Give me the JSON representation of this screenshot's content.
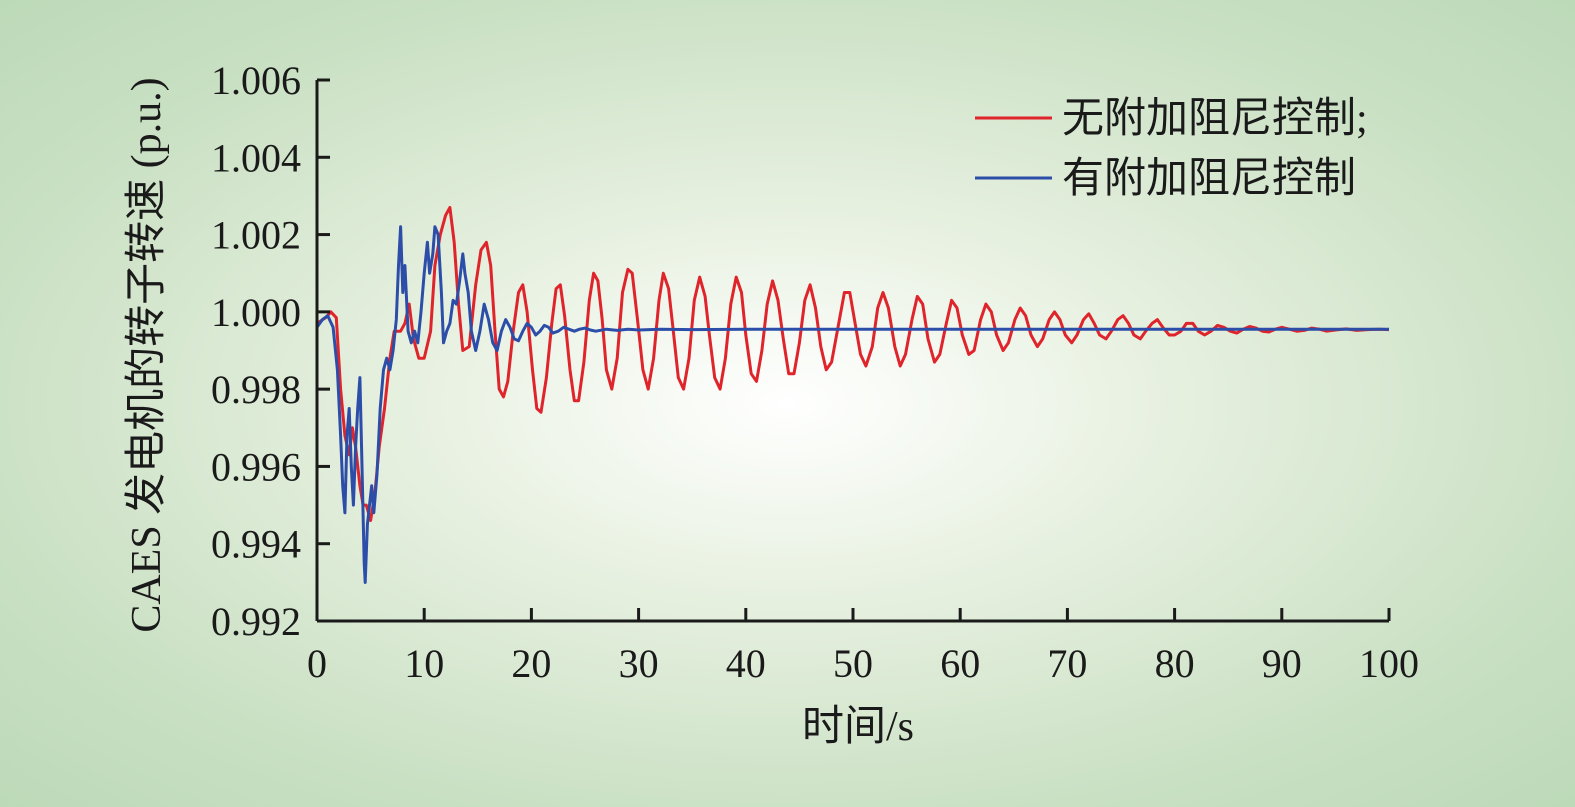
{
  "chart_data": {
    "type": "line",
    "xlabel": "时间/s",
    "ylabel": "CAES 发电机的转子转速 (p.u.)",
    "xlim": [
      0,
      100
    ],
    "ylim": [
      0.992,
      1.006
    ],
    "xticks": [
      0,
      10,
      20,
      30,
      40,
      50,
      60,
      70,
      80,
      90,
      100
    ],
    "yticks": [
      0.992,
      0.994,
      0.996,
      0.998,
      1.0,
      1.002,
      1.004,
      1.006
    ],
    "ytick_labels": [
      "0.992",
      "0.994",
      "0.996",
      "0.998",
      "1.000",
      "1.002",
      "1.004",
      "1.006"
    ],
    "grid": false,
    "legend_position": "top-right",
    "series": [
      {
        "name": "无附加阻尼控制;",
        "color": "#e0242b",
        "points": [
          [
            0,
            0.9997
          ],
          [
            0.8,
            0.99985
          ],
          [
            1.3,
            1.0
          ],
          [
            1.8,
            0.99985
          ],
          [
            2.2,
            0.998
          ],
          [
            2.6,
            0.9968
          ],
          [
            3.0,
            0.9963
          ],
          [
            3.3,
            0.997
          ],
          [
            3.6,
            0.9965
          ],
          [
            4.0,
            0.9955
          ],
          [
            4.3,
            0.995
          ],
          [
            4.6,
            0.995
          ],
          [
            5.0,
            0.9946
          ],
          [
            5.4,
            0.9953
          ],
          [
            5.8,
            0.9965
          ],
          [
            6.3,
            0.9975
          ],
          [
            6.8,
            0.9988
          ],
          [
            7.2,
            0.9995
          ],
          [
            7.8,
            0.9995
          ],
          [
            8.2,
            0.9997
          ],
          [
            8.6,
            1.0002
          ],
          [
            9.0,
            0.9993
          ],
          [
            9.5,
            0.9988
          ],
          [
            10.0,
            0.9988
          ],
          [
            10.6,
            0.9995
          ],
          [
            11.0,
            1.0012
          ],
          [
            11.5,
            1.002
          ],
          [
            12.0,
            1.0025
          ],
          [
            12.4,
            1.0027
          ],
          [
            12.8,
            1.0018
          ],
          [
            13.2,
            1.0002
          ],
          [
            13.6,
            0.999
          ],
          [
            14.2,
            0.9991
          ],
          [
            14.8,
            1.0007
          ],
          [
            15.3,
            1.0016
          ],
          [
            15.8,
            1.0018
          ],
          [
            16.2,
            1.0012
          ],
          [
            16.6,
            0.9995
          ],
          [
            17.0,
            0.998
          ],
          [
            17.4,
            0.9978
          ],
          [
            17.8,
            0.9982
          ],
          [
            18.3,
            0.9995
          ],
          [
            18.8,
            1.0005
          ],
          [
            19.2,
            1.0007
          ],
          [
            19.6,
            1.0
          ],
          [
            20.1,
            0.9985
          ],
          [
            20.5,
            0.9975
          ],
          [
            20.9,
            0.9974
          ],
          [
            21.4,
            0.9983
          ],
          [
            21.9,
            0.9997
          ],
          [
            22.3,
            1.0006
          ],
          [
            22.7,
            1.0007
          ],
          [
            23.1,
            0.9999
          ],
          [
            23.6,
            0.9985
          ],
          [
            24.0,
            0.9977
          ],
          [
            24.4,
            0.9977
          ],
          [
            24.9,
            0.9987
          ],
          [
            25.4,
            1.0003
          ],
          [
            25.8,
            1.001
          ],
          [
            26.2,
            1.0008
          ],
          [
            26.6,
            0.9998
          ],
          [
            27.0,
            0.9985
          ],
          [
            27.5,
            0.998
          ],
          [
            28.0,
            0.9988
          ],
          [
            28.5,
            1.0005
          ],
          [
            29.0,
            1.0011
          ],
          [
            29.4,
            1.001
          ],
          [
            29.9,
            0.9998
          ],
          [
            30.4,
            0.9985
          ],
          [
            30.9,
            0.998
          ],
          [
            31.4,
            0.9988
          ],
          [
            31.9,
            1.0003
          ],
          [
            32.3,
            1.001
          ],
          [
            32.8,
            1.0006
          ],
          [
            33.2,
            0.9996
          ],
          [
            33.7,
            0.9983
          ],
          [
            34.2,
            0.998
          ],
          [
            34.7,
            0.9988
          ],
          [
            35.2,
            1.0003
          ],
          [
            35.7,
            1.0009
          ],
          [
            36.2,
            1.0004
          ],
          [
            36.6,
            0.9994
          ],
          [
            37.1,
            0.9983
          ],
          [
            37.6,
            0.998
          ],
          [
            38.1,
            0.9988
          ],
          [
            38.6,
            1.0002
          ],
          [
            39.1,
            1.0009
          ],
          [
            39.6,
            1.0005
          ],
          [
            40.0,
            0.9994
          ],
          [
            40.5,
            0.9984
          ],
          [
            41.0,
            0.9982
          ],
          [
            41.5,
            0.999
          ],
          [
            42.0,
            1.0002
          ],
          [
            42.5,
            1.0008
          ],
          [
            43.0,
            1.0003
          ],
          [
            43.5,
            0.9993
          ],
          [
            44.0,
            0.9984
          ],
          [
            44.5,
            0.9984
          ],
          [
            45.0,
            0.9992
          ],
          [
            45.5,
            1.0003
          ],
          [
            46.0,
            1.0007
          ],
          [
            46.5,
            1.0001
          ],
          [
            47.0,
            0.9991
          ],
          [
            47.5,
            0.9985
          ],
          [
            48.0,
            0.9987
          ],
          [
            48.6,
            0.9996
          ],
          [
            49.2,
            1.0005
          ],
          [
            49.7,
            1.0005
          ],
          [
            50.2,
            0.9997
          ],
          [
            50.7,
            0.9989
          ],
          [
            51.2,
            0.9986
          ],
          [
            51.8,
            0.9991
          ],
          [
            52.3,
            1.0001
          ],
          [
            52.8,
            1.0005
          ],
          [
            53.3,
            1.0001
          ],
          [
            53.9,
            0.9991
          ],
          [
            54.4,
            0.9986
          ],
          [
            54.9,
            0.9989
          ],
          [
            55.5,
            0.9998
          ],
          [
            56.0,
            1.0004
          ],
          [
            56.5,
            1.0002
          ],
          [
            57.0,
            0.9993
          ],
          [
            57.6,
            0.9987
          ],
          [
            58.1,
            0.9989
          ],
          [
            58.7,
            0.9997
          ],
          [
            59.2,
            1.0003
          ],
          [
            59.7,
            1.0001
          ],
          [
            60.2,
            0.9994
          ],
          [
            60.8,
            0.9989
          ],
          [
            61.3,
            0.999
          ],
          [
            61.9,
            0.9998
          ],
          [
            62.4,
            1.0002
          ],
          [
            62.9,
            1.0
          ],
          [
            63.4,
            0.9994
          ],
          [
            64.0,
            0.999
          ],
          [
            64.5,
            0.9992
          ],
          [
            65.1,
            0.9998
          ],
          [
            65.6,
            1.0001
          ],
          [
            66.1,
            0.9999
          ],
          [
            66.6,
            0.9994
          ],
          [
            67.2,
            0.9991
          ],
          [
            67.7,
            0.9993
          ],
          [
            68.3,
            0.9998
          ],
          [
            68.8,
            1.0
          ],
          [
            69.3,
            0.9998
          ],
          [
            69.8,
            0.9994
          ],
          [
            70.4,
            0.9992
          ],
          [
            70.9,
            0.9994
          ],
          [
            71.5,
            0.9998
          ],
          [
            72.0,
            0.99995
          ],
          [
            72.5,
            0.9997
          ],
          [
            73.0,
            0.9994
          ],
          [
            73.6,
            0.9993
          ],
          [
            74.1,
            0.9995
          ],
          [
            74.7,
            0.9998
          ],
          [
            75.2,
            0.9999
          ],
          [
            75.7,
            0.9997
          ],
          [
            76.2,
            0.9994
          ],
          [
            76.8,
            0.9993
          ],
          [
            77.3,
            0.9995
          ],
          [
            77.9,
            0.9997
          ],
          [
            78.4,
            0.9998
          ],
          [
            78.9,
            0.9996
          ],
          [
            79.5,
            0.9994
          ],
          [
            80.0,
            0.9994
          ],
          [
            80.6,
            0.9995
          ],
          [
            81.1,
            0.9997
          ],
          [
            81.7,
            0.9997
          ],
          [
            82.2,
            0.9995
          ],
          [
            82.8,
            0.9994
          ],
          [
            83.4,
            0.9995
          ],
          [
            84.0,
            0.99965
          ],
          [
            84.6,
            0.9996
          ],
          [
            85.2,
            0.9995
          ],
          [
            85.8,
            0.99945
          ],
          [
            86.4,
            0.99955
          ],
          [
            87.0,
            0.99962
          ],
          [
            87.6,
            0.99958
          ],
          [
            88.2,
            0.9995
          ],
          [
            88.8,
            0.99948
          ],
          [
            89.4,
            0.99955
          ],
          [
            90.0,
            0.9996
          ],
          [
            90.7,
            0.99955
          ],
          [
            91.4,
            0.9995
          ],
          [
            92.1,
            0.99952
          ],
          [
            92.8,
            0.99958
          ],
          [
            93.5,
            0.99955
          ],
          [
            94.2,
            0.9995
          ],
          [
            95.0,
            0.99953
          ],
          [
            96.0,
            0.99956
          ],
          [
            97.0,
            0.99952
          ],
          [
            98.0,
            0.99954
          ],
          [
            99.0,
            0.99955
          ],
          [
            100.0,
            0.99954
          ]
        ]
      },
      {
        "name": "有附加阻尼控制",
        "color": "#2c4ea8",
        "points": [
          [
            0,
            0.9996
          ],
          [
            0.5,
            0.9998
          ],
          [
            1.0,
            0.9999
          ],
          [
            1.5,
            0.9996
          ],
          [
            1.9,
            0.9985
          ],
          [
            2.2,
            0.9968
          ],
          [
            2.4,
            0.9955
          ],
          [
            2.6,
            0.9948
          ],
          [
            2.8,
            0.9968
          ],
          [
            3.0,
            0.9975
          ],
          [
            3.2,
            0.996
          ],
          [
            3.4,
            0.995
          ],
          [
            3.6,
            0.9965
          ],
          [
            3.8,
            0.9975
          ],
          [
            4.0,
            0.9983
          ],
          [
            4.2,
            0.996
          ],
          [
            4.4,
            0.9935
          ],
          [
            4.5,
            0.993
          ],
          [
            4.7,
            0.9945
          ],
          [
            4.9,
            0.995
          ],
          [
            5.1,
            0.9955
          ],
          [
            5.3,
            0.9948
          ],
          [
            5.6,
            0.9958
          ],
          [
            5.9,
            0.9975
          ],
          [
            6.2,
            0.9985
          ],
          [
            6.5,
            0.9988
          ],
          [
            6.8,
            0.9985
          ],
          [
            7.1,
            0.999
          ],
          [
            7.4,
            0.9998
          ],
          [
            7.6,
            1.0012
          ],
          [
            7.8,
            1.0022
          ],
          [
            8.0,
            1.0005
          ],
          [
            8.2,
            1.0012
          ],
          [
            8.5,
            0.9995
          ],
          [
            8.8,
            0.9992
          ],
          [
            9.1,
            0.9995
          ],
          [
            9.4,
            0.9992
          ],
          [
            9.7,
            1.0
          ],
          [
            10.0,
            1.001
          ],
          [
            10.3,
            1.0018
          ],
          [
            10.5,
            1.001
          ],
          [
            10.8,
            1.0015
          ],
          [
            11.0,
            1.0022
          ],
          [
            11.3,
            1.002
          ],
          [
            11.6,
            1.0005
          ],
          [
            11.8,
            0.9992
          ],
          [
            12.1,
            0.9995
          ],
          [
            12.4,
            0.9997
          ],
          [
            12.7,
            1.0003
          ],
          [
            13.0,
            1.0002
          ],
          [
            13.3,
            1.0008
          ],
          [
            13.6,
            1.0015
          ],
          [
            13.8,
            1.001
          ],
          [
            14.1,
            1.0005
          ],
          [
            14.4,
            0.9995
          ],
          [
            14.8,
            0.999
          ],
          [
            15.2,
            0.9995
          ],
          [
            15.6,
            1.0002
          ],
          [
            16.0,
            0.9998
          ],
          [
            16.4,
            0.9992
          ],
          [
            16.8,
            0.999
          ],
          [
            17.2,
            0.9995
          ],
          [
            17.6,
            0.9998
          ],
          [
            18.0,
            0.9996
          ],
          [
            18.4,
            0.9993
          ],
          [
            18.8,
            0.99925
          ],
          [
            19.2,
            0.9995
          ],
          [
            19.6,
            0.9997
          ],
          [
            20.0,
            0.9996
          ],
          [
            20.4,
            0.9994
          ],
          [
            20.8,
            0.9995
          ],
          [
            21.2,
            0.99965
          ],
          [
            21.6,
            0.9996
          ],
          [
            22.0,
            0.99945
          ],
          [
            22.5,
            0.9995
          ],
          [
            23.0,
            0.9996
          ],
          [
            23.5,
            0.99955
          ],
          [
            24.0,
            0.9995
          ],
          [
            24.5,
            0.99955
          ],
          [
            25.0,
            0.99958
          ],
          [
            25.5,
            0.99953
          ],
          [
            26.0,
            0.9995
          ],
          [
            27.0,
            0.99955
          ],
          [
            28.0,
            0.99952
          ],
          [
            29.0,
            0.99955
          ],
          [
            30.0,
            0.99953
          ],
          [
            32.0,
            0.99955
          ],
          [
            35.0,
            0.99954
          ],
          [
            40.0,
            0.99955
          ],
          [
            50.0,
            0.99955
          ],
          [
            60.0,
            0.99955
          ],
          [
            70.0,
            0.99955
          ],
          [
            80.0,
            0.99955
          ],
          [
            90.0,
            0.99955
          ],
          [
            100.0,
            0.99955
          ]
        ]
      }
    ]
  }
}
